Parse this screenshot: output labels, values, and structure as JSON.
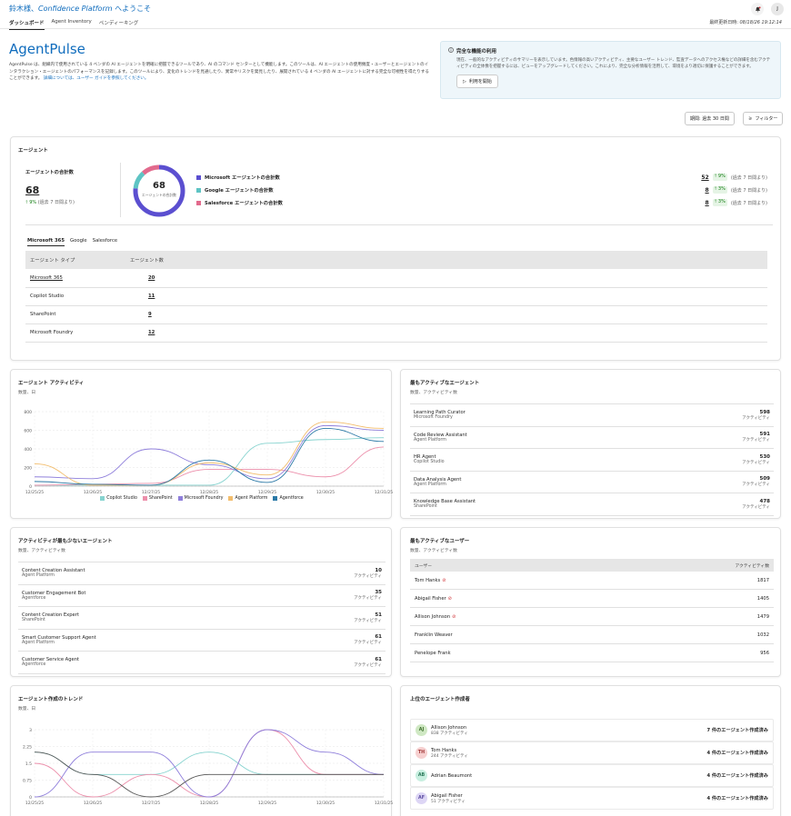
{
  "header": {
    "welcome_prefix": "鈴木様、",
    "welcome_brand": "Confidence Platform",
    "welcome_suffix": " へようこそ",
    "tabs": [
      "ダッシュボード",
      "Agent Inventory",
      "ペンディーキング"
    ],
    "last_updated_label": "最終更新日時:",
    "last_updated_value": "08/18/26 19:12:14",
    "avatar_initial": "J",
    "notification_icon": "bell-icon"
  },
  "page": {
    "title": "AgentPulse",
    "intro": "AgentPulse は、組織内で使用されている 4 ベンダの AI エージェントを明確に把握できるツールであり、AI のコマンド センターとして機能します。このツールは、AI エージェントの使用頻度・ユーザーとエージェントのインタラクション・エージェントのパフォーマンスを記録します。このツールにより、変化のトレンドを見通したり、異常やリスクを発見したり、展開されている 4 ベンダの AI エージェントに対する完全な可視性を得たりすることができます。",
    "intro_link": "詳細については、ユーザー ガイドを参照してください。"
  },
  "promo": {
    "title": "完全な機能の利用",
    "text": "現在、一般的なアクティビティのサマリーを表示しています。色情報の高いアクティビティ、主要なユーザー トレンド、監査データへのアクセス権などの詳細を含むアクティビティの全体像を把握するには、ビューをアップグレードしてください。これにより、完全な分析情報を活用して、環境をより適切に保護することができます。",
    "button": "利用を開始"
  },
  "controls": {
    "period_label": "期間: 過去 30 日間",
    "filter_label": "フィルター"
  },
  "agents_card": {
    "title": "エージェント",
    "total_label": "エージェントの合計数",
    "total_value": "68",
    "total_change": "9%",
    "total_change_note": "(過去 7 日間より)",
    "donut_value": "68",
    "donut_caption": "エージェントの合計数",
    "vendors": [
      {
        "label": "Microsoft エージェントの合計数",
        "value": "52",
        "change": "9%",
        "note": "(過去 7 日間より)",
        "color": "#5b4fd0"
      },
      {
        "label": "Google エージェントの合計数",
        "value": "8",
        "change": "3%",
        "note": "(過去 7 日間より)",
        "color": "#5ec4c4"
      },
      {
        "label": "Salesforce エージェントの合計数",
        "value": "8",
        "change": "3%",
        "note": "(過去 7 日間より)",
        "color": "#e26a8d"
      }
    ],
    "subtabs": [
      "Microsoft 365",
      "Google",
      "Salesforce"
    ],
    "table_headers": [
      "エージェント タイプ",
      "エージェント数"
    ],
    "rows": [
      {
        "type": "Microsoft 365",
        "count": "20"
      },
      {
        "type": "Copilot Studio",
        "count": "11"
      },
      {
        "type": "SharePoint",
        "count": "9"
      },
      {
        "type": "Microsoft Foundry",
        "count": "12"
      }
    ]
  },
  "activity_chart": {
    "title": "エージェント アクティビティ",
    "subtitle": "数量、日"
  },
  "chart_data": [
    {
      "type": "line",
      "title": "エージェント アクティビティ",
      "subtitle": "数量、日",
      "categories": [
        "12/25/25",
        "12/26/25",
        "12/27/25",
        "12/28/25",
        "12/29/25",
        "12/30/25",
        "12/31/25"
      ],
      "ylim": [
        0,
        800
      ],
      "yticks": [
        0,
        200,
        400,
        600,
        800
      ],
      "grid": true,
      "legend": "bottom",
      "series": [
        {
          "name": "Copilot Studio",
          "color": "#86d3cf",
          "values": [
            10,
            10,
            10,
            10,
            460,
            500,
            520
          ]
        },
        {
          "name": "SharePoint",
          "color": "#ec8fab",
          "values": [
            10,
            20,
            30,
            180,
            180,
            100,
            420
          ]
        },
        {
          "name": "Microsoft Foundry",
          "color": "#8f7fdb",
          "values": [
            100,
            80,
            400,
            230,
            80,
            650,
            600
          ]
        },
        {
          "name": "Agent Platform",
          "color": "#f2bd6d",
          "values": [
            240,
            10,
            10,
            250,
            120,
            690,
            620
          ]
        },
        {
          "name": "Agentforce",
          "color": "#2b79a6",
          "values": [
            50,
            20,
            10,
            280,
            40,
            620,
            480
          ]
        }
      ]
    },
    {
      "type": "line",
      "title": "エージェント作成のトレンド",
      "subtitle": "数量、日",
      "categories": [
        "12/25/25",
        "12/26/25",
        "12/27/25",
        "12/28/25",
        "12/29/25",
        "12/30/25",
        "12/31/25"
      ],
      "ylim": [
        0,
        3
      ],
      "yticks": [
        0,
        0.75,
        1.5,
        2.25,
        3
      ],
      "grid": true,
      "series": [
        {
          "name": "Copilot Studio",
          "color": "#86d3cf",
          "values": [
            2,
            1,
            1,
            2,
            1,
            1,
            1
          ]
        },
        {
          "name": "SharePoint",
          "color": "#ec8fab",
          "values": [
            1.5,
            0,
            1,
            0,
            3,
            1,
            1
          ]
        },
        {
          "name": "Microsoft Foundry",
          "color": "#8f7fdb",
          "values": [
            0,
            2,
            2,
            0,
            3,
            2,
            1
          ]
        },
        {
          "name": "Agentforce",
          "color": "#555555",
          "values": [
            2,
            1,
            0,
            1,
            1,
            1,
            1
          ]
        }
      ]
    }
  ],
  "most_active_agents": {
    "title": "最もアクティブなエージェント",
    "subtitle": "数量、アクティビティ数",
    "unit": "アクティビティ",
    "items": [
      {
        "name": "Learning Path Curator",
        "platform": "Microsoft Foundry",
        "value": "598"
      },
      {
        "name": "Code Review Assistant",
        "platform": "Agent Platform",
        "value": "591"
      },
      {
        "name": "HR Agent",
        "platform": "Copilot Studio",
        "value": "530"
      },
      {
        "name": "Data Analysis Agent",
        "platform": "Agent Platform",
        "value": "509"
      },
      {
        "name": "Knowledge Base Assistant",
        "platform": "SharePoint",
        "value": "478"
      }
    ]
  },
  "least_active_agents": {
    "title": "アクティビティが最も少ないエージェント",
    "subtitle": "数量、アクティビティ数",
    "unit": "アクティビティ",
    "items": [
      {
        "name": "Content Creation Assistant",
        "platform": "Agent Platform",
        "value": "10"
      },
      {
        "name": "Customer Engagement Bot",
        "platform": "Agentforce",
        "value": "35"
      },
      {
        "name": "Content Creation Expert",
        "platform": "SharePoint",
        "value": "51"
      },
      {
        "name": "Smart Customer Support Agent",
        "platform": "Agent Platform",
        "value": "61"
      },
      {
        "name": "Customer Service Agent",
        "platform": "Agentforce",
        "value": "61"
      }
    ]
  },
  "most_active_users": {
    "title": "最もアクティブなユーザー",
    "subtitle": "数量、アクティビティ数",
    "headers": [
      "ユーザー",
      "アクティビティ数"
    ],
    "rows": [
      {
        "name": "Tom Hanks",
        "flag": true,
        "value": "1817"
      },
      {
        "name": "Abigail Fisher",
        "flag": true,
        "value": "1405"
      },
      {
        "name": "Allison Johnson",
        "flag": true,
        "value": "1479"
      },
      {
        "name": "Franklin Weaver",
        "flag": false,
        "value": "1032"
      },
      {
        "name": "Penelope Frank",
        "flag": false,
        "value": "956"
      }
    ]
  },
  "creation_trend": {
    "title": "エージェント作成のトレンド",
    "subtitle": "数量、日"
  },
  "top_creators": {
    "title": "上位のエージェント作成者",
    "items": [
      {
        "initials": "AJ",
        "name": "Allison Johnson",
        "sub": "838 アクティビティ",
        "created": "7 件のエージェント作成済み",
        "bg": "#cfe8c3",
        "fg": "#3c6e2a"
      },
      {
        "initials": "TH",
        "name": "Tom Hanks",
        "sub": "244 アクティビティ",
        "created": "4 件のエージェント作成済み",
        "bg": "#f6d0d0",
        "fg": "#a33a3a"
      },
      {
        "initials": "AB",
        "name": "Adrian Beaumont",
        "sub": "",
        "created": "4 件のエージェント作成済み",
        "bg": "#c8efe0",
        "fg": "#2a7a5a"
      },
      {
        "initials": "AF",
        "name": "Abigail Fisher",
        "sub": "51 アクティビティ",
        "created": "4 件のエージェント作成済み",
        "bg": "#ddd6f5",
        "fg": "#5a4aa0"
      }
    ]
  }
}
